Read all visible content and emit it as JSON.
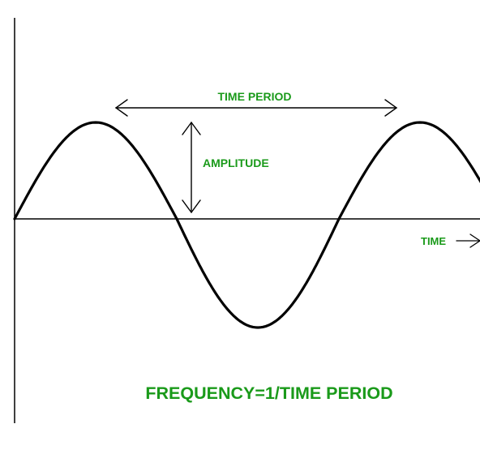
{
  "labels": {
    "time_period": "TIME PERIOD",
    "amplitude": "AMPLITUDE",
    "time": "TIME",
    "formula": "FREQUENCY=1/TIME PERIOD"
  },
  "colors": {
    "label": "#1a9a1a",
    "wave": "#000000",
    "axis": "#000000",
    "arrow": "#000000",
    "background": "#ffffff"
  }
}
